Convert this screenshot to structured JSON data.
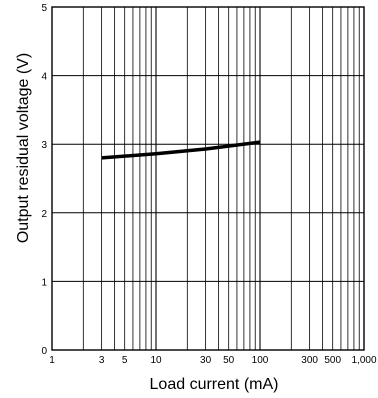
{
  "chart_data": {
    "type": "line",
    "xlabel": "Load current (mA)",
    "ylabel": "Output residual voltage (V)",
    "x_scale": "log",
    "xlim": [
      1,
      1000
    ],
    "ylim": [
      0,
      5
    ],
    "grid": true,
    "x_ticks": [
      {
        "value": 1,
        "label": "1"
      },
      {
        "value": 3,
        "label": "3"
      },
      {
        "value": 5,
        "label": "5"
      },
      {
        "value": 10,
        "label": "10"
      },
      {
        "value": 30,
        "label": "30"
      },
      {
        "value": 50,
        "label": "50"
      },
      {
        "value": 100,
        "label": "100"
      },
      {
        "value": 300,
        "label": "300"
      },
      {
        "value": 500,
        "label": "500"
      },
      {
        "value": 1000,
        "label": "1,000"
      }
    ],
    "y_ticks": [
      {
        "value": 0,
        "label": "0"
      },
      {
        "value": 1,
        "label": "1"
      },
      {
        "value": 2,
        "label": "2"
      },
      {
        "value": 3,
        "label": "3"
      },
      {
        "value": 4,
        "label": "4"
      },
      {
        "value": 5,
        "label": "5"
      }
    ],
    "series": [
      {
        "x": [
          3,
          10,
          30,
          100
        ],
        "y": [
          2.8,
          2.86,
          2.93,
          3.03
        ],
        "color": "#000000"
      }
    ]
  }
}
